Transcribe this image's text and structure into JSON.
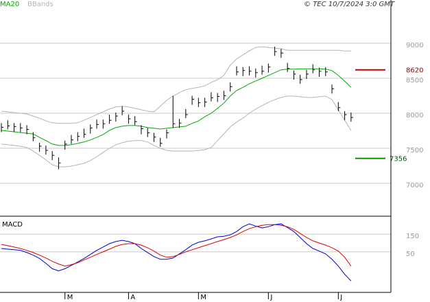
{
  "chart_data": [
    {
      "type": "ohlc",
      "source": "© TEC 10/7/2024 3:0 GMT",
      "categories": [
        null,
        null,
        null,
        null,
        null,
        null,
        null,
        null,
        null,
        null,
        "M",
        null,
        null,
        null,
        null,
        null,
        null,
        null,
        null,
        null,
        "A",
        null,
        null,
        null,
        null,
        null,
        null,
        null,
        null,
        null,
        null,
        "M",
        null,
        null,
        null,
        null,
        null,
        null,
        null,
        null,
        null,
        null,
        "J",
        null,
        null,
        null,
        null,
        null,
        null,
        null,
        null,
        null,
        null,
        "J",
        null,
        null
      ],
      "ylim": [
        6530,
        9470
      ],
      "yticks": [
        7000,
        7500,
        8000,
        8500,
        9000
      ],
      "grid": true,
      "bar_color": "#000000",
      "close": [
        7800,
        7820,
        7810,
        7790,
        7770,
        7650,
        7530,
        7470,
        7400,
        7290,
        7560,
        7620,
        7670,
        7700,
        7790,
        7840,
        7850,
        7900,
        7960,
        8030,
        7920,
        7880,
        7780,
        7720,
        7660,
        7570,
        7720,
        7850,
        7860,
        7980,
        8200,
        8150,
        8160,
        8220,
        8240,
        8250,
        8380,
        8590,
        8610,
        8600,
        8580,
        8600,
        8660,
        8880,
        8860,
        8640,
        8560,
        8480,
        8560,
        8620,
        8600,
        8590,
        8350,
        8080,
        7980,
        7940
      ],
      "high": [
        7860,
        7900,
        7860,
        7860,
        7830,
        7730,
        7580,
        7540,
        7460,
        7370,
        7610,
        7690,
        7730,
        7780,
        7840,
        7910,
        7910,
        7980,
        8010,
        8100,
        7980,
        7960,
        7830,
        7790,
        7720,
        7650,
        7770,
        8250,
        7920,
        8060,
        8250,
        8220,
        8220,
        8300,
        8290,
        8320,
        8440,
        8670,
        8660,
        8670,
        8640,
        8680,
        8710,
        8950,
        8920,
        8720,
        8610,
        8550,
        8620,
        8700,
        8650,
        8660,
        8410,
        8160,
        8030,
        8010
      ],
      "low": [
        7730,
        7770,
        7730,
        7730,
        7700,
        7600,
        7450,
        7410,
        7330,
        7200,
        7480,
        7560,
        7600,
        7650,
        7710,
        7780,
        7780,
        7850,
        7880,
        7970,
        7850,
        7830,
        7700,
        7660,
        7590,
        7520,
        7640,
        7790,
        7790,
        7930,
        8120,
        8090,
        8090,
        8170,
        8160,
        8190,
        8310,
        8540,
        8530,
        8540,
        8510,
        8550,
        8580,
        8820,
        8790,
        8590,
        8480,
        8420,
        8490,
        8570,
        8520,
        8530,
        8280,
        8030,
        7900,
        7880
      ],
      "series": [
        {
          "name": "MA20",
          "color": "#00aa00",
          "values": [
            7755,
            7745,
            7735,
            7725,
            7715,
            7705,
            7655,
            7610,
            7560,
            7540,
            7540,
            7550,
            7570,
            7590,
            7620,
            7655,
            7695,
            7755,
            7795,
            7815,
            7825,
            7825,
            7815,
            7795,
            7785,
            7775,
            7785,
            7795,
            7805,
            7815,
            7855,
            7890,
            7950,
            8000,
            8070,
            8145,
            8245,
            8325,
            8370,
            8420,
            8460,
            8500,
            8540,
            8580,
            8620,
            8630,
            8630,
            8635,
            8635,
            8635,
            8635,
            8630,
            8610,
            8540,
            8460,
            8370
          ]
        }
      ],
      "bands": {
        "name": "BBands",
        "color": "#b4b4b4",
        "upper": [
          8030,
          8020,
          8010,
          8000,
          7990,
          7960,
          7930,
          7890,
          7865,
          7855,
          7855,
          7855,
          7865,
          7900,
          7940,
          7980,
          8020,
          8060,
          8090,
          8100,
          8090,
          8070,
          8050,
          8030,
          8020,
          8100,
          8185,
          8245,
          8295,
          8335,
          8355,
          8370,
          8390,
          8440,
          8480,
          8540,
          8685,
          8775,
          8835,
          8890,
          8940,
          8950,
          8940,
          8930,
          8920,
          8900,
          8900,
          8900,
          8900,
          8900,
          8900,
          8900,
          8900,
          8900,
          8890,
          8890
        ],
        "lower": [
          7560,
          7550,
          7540,
          7530,
          7510,
          7460,
          7400,
          7335,
          7265,
          7235,
          7235,
          7245,
          7265,
          7285,
          7325,
          7380,
          7440,
          7500,
          7550,
          7580,
          7600,
          7610,
          7610,
          7590,
          7540,
          7500,
          7470,
          7460,
          7460,
          7460,
          7460,
          7470,
          7480,
          7510,
          7610,
          7705,
          7805,
          7875,
          7930,
          8000,
          8060,
          8110,
          8155,
          8195,
          8225,
          8245,
          8245,
          8235,
          8225,
          8225,
          8235,
          8245,
          8195,
          8050,
          7900,
          7755
        ]
      },
      "levels": [
        {
          "value": 8620,
          "color": "#cc0000"
        },
        {
          "value": 7356,
          "color": "#009900"
        }
      ]
    },
    {
      "type": "line",
      "title": "MACD",
      "ylim": [
        -180,
        240
      ],
      "yticks": [
        50,
        150
      ],
      "grid": true,
      "series": [
        {
          "color": "#0000cc",
          "values": [
            69,
            65,
            62,
            58,
            46,
            31,
            12,
            -15,
            -46,
            -58,
            -46,
            -27,
            -8,
            12,
            35,
            58,
            77,
            96,
            108,
            115,
            108,
            96,
            69,
            46,
            23,
            8,
            8,
            15,
            38,
            62,
            88,
            104,
            112,
            123,
            135,
            138,
            146,
            165,
            192,
            208,
            196,
            185,
            192,
            204,
            208,
            188,
            165,
            131,
            96,
            69,
            54,
            38,
            8,
            -31,
            -77,
            -115
          ]
        },
        {
          "color": "#dd0000",
          "values": [
            92,
            85,
            77,
            69,
            58,
            46,
            31,
            15,
            -4,
            -19,
            -31,
            -23,
            -12,
            4,
            19,
            35,
            50,
            65,
            81,
            92,
            96,
            96,
            88,
            73,
            54,
            31,
            19,
            23,
            35,
            50,
            62,
            73,
            85,
            96,
            108,
            119,
            131,
            146,
            165,
            181,
            192,
            200,
            204,
            204,
            200,
            192,
            177,
            154,
            131,
            112,
            100,
            88,
            73,
            54,
            19,
            -31
          ]
        }
      ]
    }
  ]
}
